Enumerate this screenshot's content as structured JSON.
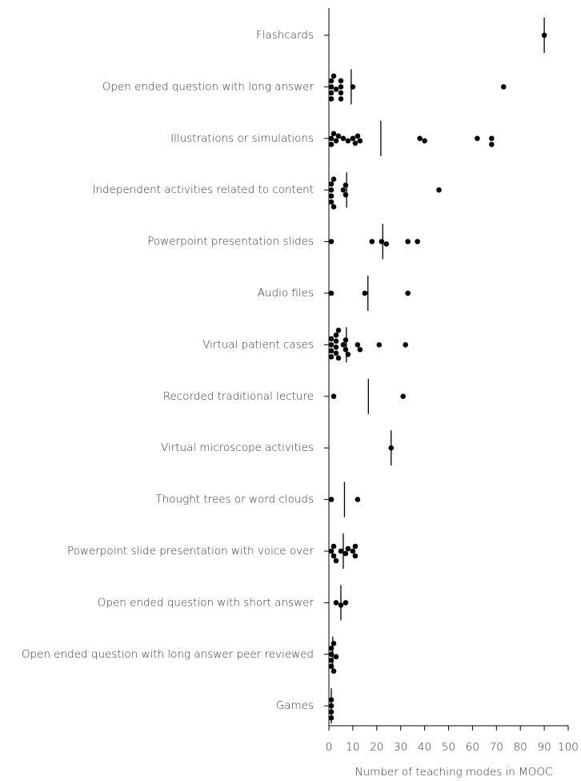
{
  "chart_data": {
    "type": "strip",
    "x_label": "Number of teaching modes in MOOC",
    "xlim": [
      0,
      100
    ],
    "xticks": [
      0,
      10,
      20,
      30,
      40,
      50,
      60,
      70,
      80,
      90,
      100
    ],
    "color": "#000000",
    "categories": [
      "Flashcards",
      "Open ended question with long answer",
      "Illustrations or simulations",
      "Independent activities related to content",
      "Powerpoint presentation slides",
      "Audio files",
      "Virtual patient cases",
      "Recorded traditional lecture",
      "Virtual microscope activities",
      "Thought trees or word clouds",
      "Powerpoint slide presentation with voice over",
      "Open ended question with short answer",
      "Open ended question with long answer peer reviewed",
      "Games"
    ],
    "values": [
      [
        90
      ],
      [
        1,
        1,
        1,
        1,
        2,
        3,
        5,
        5,
        5,
        5,
        10,
        73
      ],
      [
        1,
        1,
        2,
        3,
        4,
        6,
        8,
        10,
        11,
        12,
        13,
        38,
        40,
        62,
        68,
        68
      ],
      [
        1,
        1,
        1,
        1,
        2,
        2,
        6,
        7,
        7,
        46
      ],
      [
        1,
        18,
        22,
        24,
        33,
        37
      ],
      [
        1,
        15,
        33
      ],
      [
        1,
        1,
        1,
        1,
        3,
        3,
        3,
        3,
        4,
        4,
        6,
        7,
        7,
        8,
        12,
        13,
        21,
        32
      ],
      [
        2,
        31
      ],
      [
        26
      ],
      [
        1,
        12
      ],
      [
        1,
        2,
        2,
        3,
        5,
        7,
        8,
        10,
        11,
        11
      ],
      [
        3,
        5,
        7
      ],
      [
        1,
        1,
        1,
        1,
        2,
        2,
        3
      ],
      [
        1,
        1,
        1,
        1
      ]
    ],
    "means": [
      90,
      9.3,
      21.7,
      7.4,
      22.5,
      16.3,
      7.3,
      16.5,
      26,
      6.5,
      6,
      5,
      1.6,
      1
    ]
  }
}
